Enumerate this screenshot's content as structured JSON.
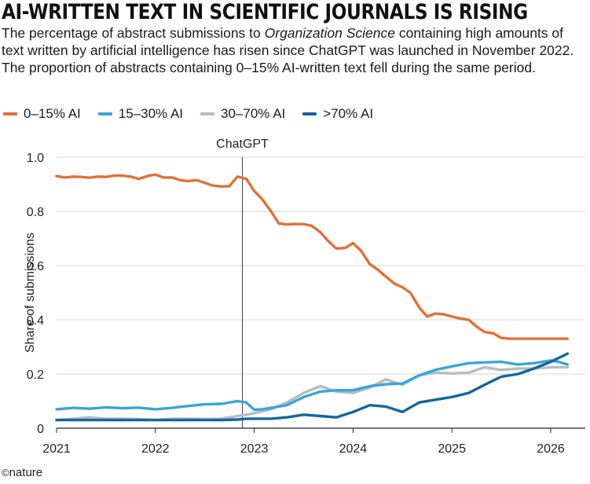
{
  "title": "AI-WRITTEN TEXT IN SCIENTIFIC JOURNALS IS RISING",
  "subtitle_parts": {
    "a": "The percentage of abstract submissions to ",
    "journal": "Organization Science",
    "b": " containing high amounts of text written by artificial intelligence has risen since ChatGPT was launched in November 2022. The proportion of abstracts containing 0–15% AI-written text fell during the same period."
  },
  "footer": {
    "mark": "©",
    "brand": "nature"
  },
  "chart_data": {
    "type": "line",
    "ylabel": "Share of submissions",
    "ylim": [
      0,
      1.0
    ],
    "yticks": [
      0,
      0.2,
      0.4,
      0.6,
      0.8,
      1.0
    ],
    "ytick_labels": [
      "0",
      "0.2",
      "0.4",
      "0.6",
      "0.8",
      "1.0"
    ],
    "xlim": [
      2021.0,
      2026.35
    ],
    "xticks": [
      2021,
      2022,
      2023,
      2024,
      2025,
      2026
    ],
    "xtick_labels": [
      "2021",
      "2022",
      "2023",
      "2024",
      "2025",
      "2026"
    ],
    "grid": "horizontal",
    "legend_position": "top-left",
    "annotations": [
      {
        "label": "ChatGPT",
        "x": 2022.88
      }
    ],
    "series": [
      {
        "name": "0–15% AI",
        "color": "#e0703a",
        "x": [
          2021.0,
          2021.08,
          2021.17,
          2021.25,
          2021.33,
          2021.42,
          2021.5,
          2021.58,
          2021.67,
          2021.75,
          2021.83,
          2021.92,
          2022.0,
          2022.08,
          2022.17,
          2022.25,
          2022.33,
          2022.42,
          2022.5,
          2022.58,
          2022.67,
          2022.75,
          2022.83,
          2022.92,
          2023.0,
          2023.08,
          2023.17,
          2023.25,
          2023.33,
          2023.42,
          2023.5,
          2023.58,
          2023.67,
          2023.75,
          2023.83,
          2023.92,
          2024.0,
          2024.08,
          2024.17,
          2024.25,
          2024.33,
          2024.42,
          2024.5,
          2024.58,
          2024.67,
          2024.75,
          2024.83,
          2024.92,
          2025.0,
          2025.08,
          2025.17,
          2025.25,
          2025.33,
          2025.42,
          2025.5,
          2025.58,
          2025.67,
          2025.75,
          2025.83,
          2025.92,
          2026.0,
          2026.08,
          2026.17
        ],
        "values": [
          0.93,
          0.925,
          0.928,
          0.927,
          0.924,
          0.928,
          0.927,
          0.932,
          0.932,
          0.928,
          0.92,
          0.93,
          0.936,
          0.925,
          0.925,
          0.915,
          0.912,
          0.915,
          0.905,
          0.895,
          0.892,
          0.893,
          0.928,
          0.92,
          0.875,
          0.845,
          0.8,
          0.755,
          0.752,
          0.753,
          0.753,
          0.747,
          0.723,
          0.69,
          0.663,
          0.665,
          0.683,
          0.655,
          0.605,
          0.585,
          0.56,
          0.533,
          0.52,
          0.5,
          0.445,
          0.412,
          0.423,
          0.42,
          0.412,
          0.405,
          0.4,
          0.375,
          0.355,
          0.35,
          0.333,
          0.33,
          0.33,
          0.33,
          0.33,
          0.33,
          0.33,
          0.33,
          0.33
        ]
      },
      {
        "name": "15–30% AI",
        "color": "#3aa5d8",
        "x": [
          2021.0,
          2021.17,
          2021.33,
          2021.5,
          2021.67,
          2021.83,
          2022.0,
          2022.17,
          2022.33,
          2022.5,
          2022.67,
          2022.83,
          2022.92,
          2023.0,
          2023.08,
          2023.17,
          2023.33,
          2023.5,
          2023.67,
          2023.83,
          2024.0,
          2024.17,
          2024.33,
          2024.5,
          2024.67,
          2024.83,
          2025.0,
          2025.17,
          2025.33,
          2025.5,
          2025.67,
          2025.83,
          2026.0,
          2026.08,
          2026.17
        ],
        "values": [
          0.07,
          0.075,
          0.072,
          0.077,
          0.074,
          0.076,
          0.07,
          0.075,
          0.082,
          0.088,
          0.09,
          0.1,
          0.095,
          0.068,
          0.07,
          0.075,
          0.085,
          0.115,
          0.135,
          0.14,
          0.14,
          0.155,
          0.162,
          0.165,
          0.195,
          0.215,
          0.228,
          0.24,
          0.243,
          0.245,
          0.235,
          0.24,
          0.25,
          0.245,
          0.235
        ]
      },
      {
        "name": "30–70% AI",
        "color": "#b5bcc3",
        "x": [
          2021.0,
          2021.17,
          2021.33,
          2021.5,
          2021.67,
          2021.83,
          2022.0,
          2022.17,
          2022.33,
          2022.5,
          2022.67,
          2022.83,
          2022.92,
          2023.0,
          2023.17,
          2023.33,
          2023.5,
          2023.67,
          2023.83,
          2024.0,
          2024.17,
          2024.33,
          2024.5,
          2024.67,
          2024.83,
          2025.0,
          2025.17,
          2025.33,
          2025.5,
          2025.67,
          2025.83,
          2026.0,
          2026.17
        ],
        "values": [
          0.03,
          0.035,
          0.04,
          0.035,
          0.035,
          0.034,
          0.03,
          0.035,
          0.035,
          0.034,
          0.035,
          0.045,
          0.05,
          0.055,
          0.07,
          0.095,
          0.13,
          0.155,
          0.135,
          0.13,
          0.15,
          0.18,
          0.16,
          0.195,
          0.205,
          0.202,
          0.205,
          0.225,
          0.215,
          0.22,
          0.22,
          0.225,
          0.225
        ]
      },
      {
        "name": ">70% AI",
        "color": "#15669e",
        "x": [
          2021.0,
          2021.17,
          2021.33,
          2021.5,
          2021.67,
          2021.83,
          2022.0,
          2022.17,
          2022.33,
          2022.5,
          2022.67,
          2022.83,
          2022.92,
          2023.0,
          2023.17,
          2023.33,
          2023.5,
          2023.67,
          2023.83,
          2024.0,
          2024.17,
          2024.33,
          2024.5,
          2024.67,
          2024.83,
          2025.0,
          2025.17,
          2025.33,
          2025.5,
          2025.67,
          2025.83,
          2026.0,
          2026.17
        ],
        "values": [
          0.03,
          0.03,
          0.03,
          0.03,
          0.03,
          0.03,
          0.03,
          0.03,
          0.03,
          0.03,
          0.03,
          0.032,
          0.035,
          0.035,
          0.035,
          0.04,
          0.05,
          0.045,
          0.04,
          0.06,
          0.085,
          0.08,
          0.06,
          0.095,
          0.105,
          0.115,
          0.13,
          0.16,
          0.19,
          0.2,
          0.22,
          0.245,
          0.275
        ]
      }
    ]
  }
}
